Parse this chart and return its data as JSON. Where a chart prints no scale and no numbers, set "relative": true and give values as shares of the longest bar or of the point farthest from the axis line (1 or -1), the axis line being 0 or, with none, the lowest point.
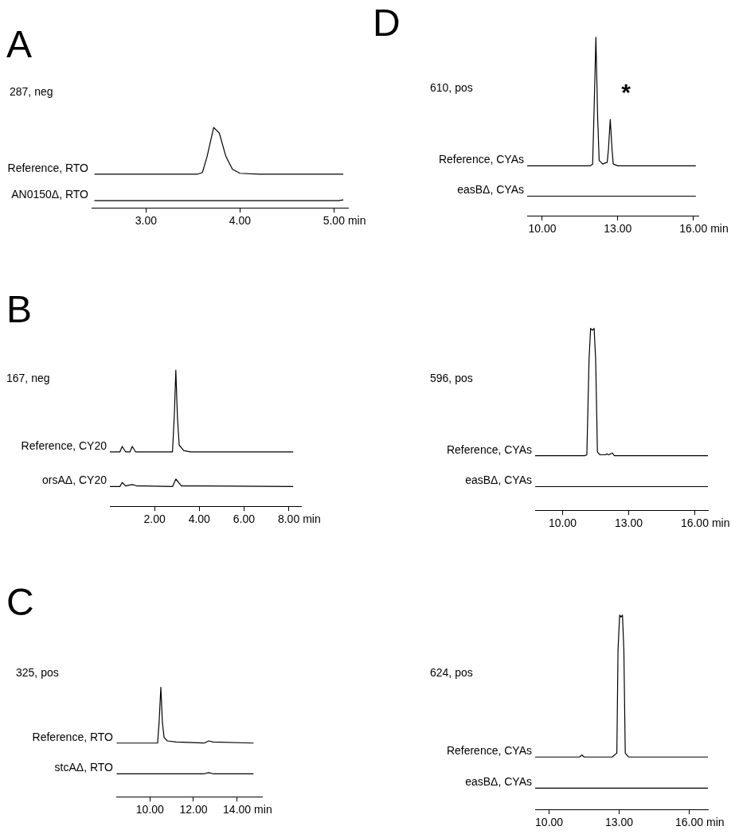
{
  "chart_data": [
    {
      "type": "line",
      "title": "A",
      "subtitle": "287, neg",
      "xlabel": "min",
      "relative": true,
      "legend": false,
      "xlim": [
        2.42,
        5.15
      ],
      "xticks": [
        {
          "value": 3,
          "label": "3.00"
        },
        {
          "value": 4,
          "label": "4.00"
        },
        {
          "value": 5,
          "label": "5.00"
        }
      ],
      "series": [
        {
          "name": "Reference, RTO",
          "color": "#000000",
          "x": [
            2.45,
            3.55,
            3.6,
            3.65,
            3.72,
            3.78,
            3.85,
            3.92,
            4.0,
            4.2,
            5.1
          ],
          "values": [
            0.42,
            0.42,
            0.44,
            0.64,
            1.0,
            0.93,
            0.64,
            0.48,
            0.43,
            0.42,
            0.42
          ]
        },
        {
          "name": "AN0150Δ, RTO",
          "color": "#000000",
          "x": [
            2.45,
            4.0,
            5.05,
            5.1
          ],
          "values": [
            0.09,
            0.09,
            0.09,
            0.1
          ]
        }
      ]
    },
    {
      "type": "line",
      "title": "B",
      "subtitle": "167, neg",
      "xlabel": "min",
      "relative": true,
      "legend": false,
      "xlim": [
        0,
        8.55
      ],
      "xticks": [
        {
          "value": 2,
          "label": "2.00"
        },
        {
          "value": 4,
          "label": "4.00"
        },
        {
          "value": 6,
          "label": "6.00"
        },
        {
          "value": 8,
          "label": "8.00"
        }
      ],
      "series": [
        {
          "name": "Reference, CY20",
          "color": "#000000",
          "x": [
            0,
            0.45,
            0.55,
            0.7,
            0.9,
            1.0,
            1.15,
            2.8,
            2.88,
            2.95,
            3.02,
            3.1,
            3.3,
            3.6,
            8.2
          ],
          "values": [
            0.4,
            0.4,
            0.44,
            0.4,
            0.4,
            0.44,
            0.4,
            0.4,
            0.66,
            1.0,
            0.66,
            0.45,
            0.41,
            0.4,
            0.4
          ]
        },
        {
          "name": "orsAΔ, CY20",
          "color": "#000000",
          "x": [
            0,
            0.45,
            0.55,
            0.7,
            1.0,
            1.2,
            1.5,
            2.8,
            2.95,
            3.1,
            3.2,
            8.2
          ],
          "values": [
            0.145,
            0.145,
            0.175,
            0.15,
            0.16,
            0.15,
            0.15,
            0.145,
            0.2,
            0.17,
            0.15,
            0.145
          ]
        }
      ]
    },
    {
      "type": "line",
      "title": "C",
      "subtitle": "325, pos",
      "xlabel": "min",
      "relative": true,
      "legend": false,
      "xlim": [
        8.45,
        15.15
      ],
      "xticks": [
        {
          "value": 10,
          "label": "10.00"
        },
        {
          "value": 12,
          "label": "12.00"
        },
        {
          "value": 14,
          "label": "14.00"
        }
      ],
      "series": [
        {
          "name": "Reference, RTO",
          "color": "#000000",
          "x": [
            8.47,
            10.35,
            10.42,
            10.5,
            10.57,
            10.65,
            10.8,
            11.2,
            12.5,
            12.7,
            12.9,
            14.76
          ],
          "values": [
            0.49,
            0.49,
            0.68,
            1.0,
            0.68,
            0.54,
            0.51,
            0.5,
            0.49,
            0.51,
            0.5,
            0.49
          ]
        },
        {
          "name": "stcAΔ, RTO",
          "color": "#000000",
          "x": [
            8.47,
            12.5,
            12.7,
            12.9,
            14.76
          ],
          "values": [
            0.21,
            0.21,
            0.22,
            0.21,
            0.21
          ]
        }
      ]
    },
    {
      "type": "line",
      "title": "D",
      "subtitle": "610, pos",
      "xlabel": "min",
      "relative": true,
      "legend": false,
      "xlim": [
        9.4,
        16.2
      ],
      "xticks": [
        {
          "value": 10,
          "label": "10.00"
        },
        {
          "value": 13,
          "label": "13.00"
        },
        {
          "value": 16,
          "label": "16.00"
        }
      ],
      "annotations": [
        "*"
      ],
      "series": [
        {
          "name": "Reference, CYAs",
          "color": "#000000",
          "x": [
            9.4,
            11.9,
            12.0,
            12.05,
            12.13,
            12.2,
            12.26,
            12.4,
            12.58,
            12.63,
            12.7,
            12.77,
            12.82,
            13.0,
            16.1
          ],
          "values": [
            0.28,
            0.28,
            0.29,
            0.55,
            1.0,
            0.55,
            0.31,
            0.29,
            0.3,
            0.375,
            0.54,
            0.375,
            0.29,
            0.28,
            0.28
          ]
        },
        {
          "name": "easBΔ, CYAs",
          "color": "#000000",
          "x": [
            9.4,
            16.1
          ],
          "values": [
            0.11,
            0.11
          ]
        }
      ]
    },
    {
      "type": "line",
      "subtitle": "596, pos",
      "xlabel": "min",
      "relative": true,
      "legend": false,
      "xlim": [
        8.75,
        16.6
      ],
      "xticks": [
        {
          "value": 10,
          "label": "10.00"
        },
        {
          "value": 13,
          "label": "13.00"
        },
        {
          "value": 16,
          "label": "16.00"
        }
      ],
      "series": [
        {
          "name": "Reference, CYAs",
          "color": "#000000",
          "x": [
            8.75,
            11.0,
            11.1,
            11.2,
            11.27,
            11.35,
            11.43,
            11.5,
            11.58,
            11.7,
            11.95,
            12.0,
            12.1,
            12.25,
            12.35,
            16.6
          ],
          "values": [
            0.3,
            0.3,
            0.305,
            0.83,
            1.0,
            0.99,
            1.0,
            0.83,
            0.32,
            0.305,
            0.305,
            0.31,
            0.305,
            0.315,
            0.3,
            0.3
          ]
        },
        {
          "name": "easBΔ, CYAs",
          "color": "#000000",
          "x": [
            8.75,
            16.6
          ],
          "values": [
            0.13,
            0.13
          ]
        }
      ]
    },
    {
      "type": "line",
      "subtitle": "624, pos",
      "xlabel": "min",
      "relative": true,
      "legend": false,
      "xlim": [
        9.4,
        16.8
      ],
      "xticks": [
        {
          "value": 10,
          "label": "10.00"
        },
        {
          "value": 13,
          "label": "13.00"
        },
        {
          "value": 16,
          "label": "16.00"
        }
      ],
      "series": [
        {
          "name": "Reference, CYAs",
          "color": "#000000",
          "x": [
            9.4,
            11.3,
            11.4,
            11.5,
            12.7,
            12.8,
            12.9,
            12.95,
            13.02,
            13.08,
            13.14,
            13.2,
            13.26,
            13.4,
            16.8
          ],
          "values": [
            0.27,
            0.27,
            0.28,
            0.27,
            0.27,
            0.28,
            0.29,
            0.82,
            1.0,
            0.99,
            1.0,
            0.82,
            0.29,
            0.27,
            0.27
          ]
        },
        {
          "name": "easBΔ, CYAs",
          "color": "#000000",
          "x": [
            9.4,
            16.8
          ],
          "values": [
            0.11,
            0.11
          ]
        }
      ]
    }
  ]
}
